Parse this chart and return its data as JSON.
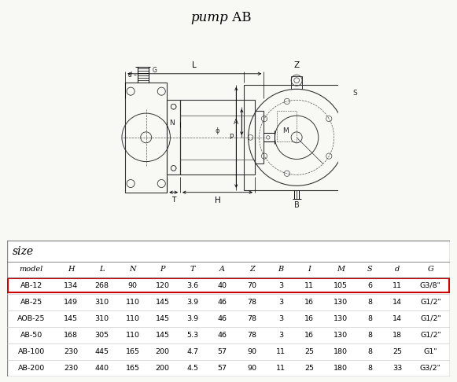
{
  "title_italic": "pump",
  "title_normal": " AB",
  "bg_color": "#f8f8f5",
  "table_title": "size",
  "columns": [
    "model",
    "H",
    "L",
    "N",
    "P",
    "T",
    "A",
    "Z",
    "B",
    "I",
    "M",
    "S",
    "d",
    "G"
  ],
  "rows": [
    [
      "AB-12",
      "134",
      "268",
      "90",
      "120",
      "3.6",
      "40",
      "70",
      "3",
      "11",
      "105",
      "6",
      "11",
      "G3/8\""
    ],
    [
      "AB-25",
      "149",
      "310",
      "110",
      "145",
      "3.9",
      "46",
      "78",
      "3",
      "16",
      "130",
      "8",
      "14",
      "G1/2\""
    ],
    [
      "AOB-25",
      "145",
      "310",
      "110",
      "145",
      "3.9",
      "46",
      "78",
      "3",
      "16",
      "130",
      "8",
      "14",
      "G1/2\""
    ],
    [
      "AB-50",
      "168",
      "305",
      "110",
      "145",
      "5.3",
      "46",
      "78",
      "3",
      "16",
      "130",
      "8",
      "18",
      "G1/2\""
    ],
    [
      "AB-100",
      "230",
      "445",
      "165",
      "200",
      "4.7",
      "57",
      "90",
      "11",
      "25",
      "180",
      "8",
      "25",
      "G1\""
    ],
    [
      "AB-200",
      "230",
      "440",
      "165",
      "200",
      "4.5",
      "57",
      "90",
      "11",
      "25",
      "180",
      "8",
      "33",
      "G3/2\""
    ]
  ],
  "highlighted_row": 0,
  "highlight_color": "#cc0000"
}
